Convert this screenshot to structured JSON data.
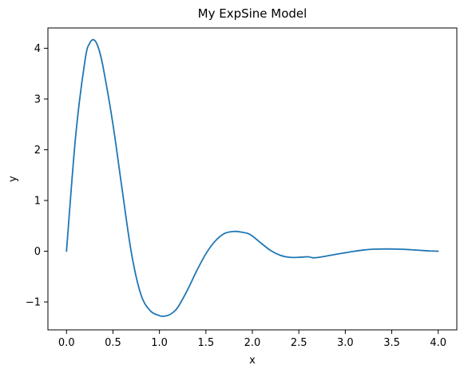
{
  "chart_data": {
    "type": "line",
    "title": "My ExpSine Model",
    "xlabel": "x",
    "ylabel": "y",
    "xlim": [
      -0.2,
      4.2
    ],
    "ylim": [
      -1.55,
      4.4
    ],
    "xticks": [
      0.0,
      0.5,
      1.0,
      1.5,
      2.0,
      2.5,
      3.0,
      3.5,
      4.0
    ],
    "xtick_labels": [
      "0.0",
      "0.5",
      "1.0",
      "1.5",
      "2.0",
      "2.5",
      "3.0",
      "3.5",
      "4.0"
    ],
    "yticks": [
      -1,
      0,
      1,
      2,
      3,
      4
    ],
    "ytick_labels": [
      "−1",
      "0",
      "1",
      "2",
      "3",
      "4"
    ],
    "grid": false,
    "legend": "none",
    "color": "#1f77b4",
    "series": [
      {
        "x": [
          0.0,
          0.1,
          0.2,
          0.25,
          0.3,
          0.35,
          0.4,
          0.5,
          0.6,
          0.7,
          0.8,
          0.9,
          1.0,
          1.05,
          1.1,
          1.15,
          1.2,
          1.3,
          1.4,
          1.5,
          1.6,
          1.7,
          1.8,
          1.87,
          1.95,
          2.0,
          2.1,
          2.2,
          2.3,
          2.4,
          2.5,
          2.6,
          2.66,
          2.75,
          2.9,
          3.0,
          3.1,
          3.2,
          3.3,
          3.44,
          3.6,
          3.7,
          3.8,
          3.9,
          4.0
        ],
        "y": [
          0.0,
          2.3,
          3.77,
          4.1,
          4.16,
          3.97,
          3.57,
          2.5,
          1.2,
          -0.05,
          -0.85,
          -1.17,
          -1.27,
          -1.28,
          -1.26,
          -1.2,
          -1.1,
          -0.77,
          -0.39,
          -0.05,
          0.2,
          0.35,
          0.39,
          0.38,
          0.35,
          0.3,
          0.15,
          0.01,
          -0.08,
          -0.12,
          -0.12,
          -0.11,
          -0.13,
          -0.11,
          -0.06,
          -0.03,
          0.0,
          0.025,
          0.04,
          0.045,
          0.04,
          0.03,
          0.018,
          0.006,
          0.0
        ]
      }
    ]
  }
}
